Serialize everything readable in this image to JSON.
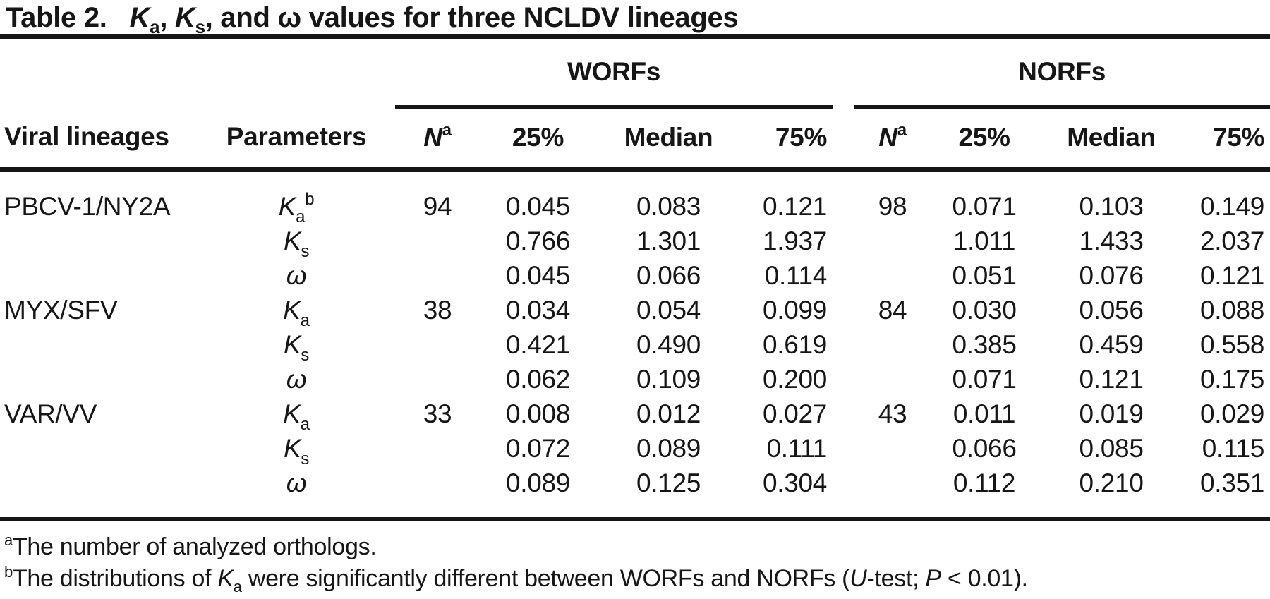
{
  "title": {
    "label": "Table 2.",
    "k1": "K",
    "k1_sub": "a",
    "sep1": ", ",
    "k2": "K",
    "k2_sub": "s",
    "sep2": ", ",
    "rest": "and ω values for three NCLDV lineages"
  },
  "header": {
    "group_worfs": "WORFs",
    "group_norfs": "NORFs",
    "col_lineage": "Viral lineages",
    "col_parameters": "Parameters",
    "col_n_base": "N",
    "col_n_sup": "a",
    "col_p25": "25%",
    "col_median": "Median",
    "col_p75": "75%"
  },
  "table": {
    "rows": [
      {
        "lineage": "PBCV-1/NY2A",
        "param": {
          "base": "K",
          "sub": "a",
          "sup": "b"
        },
        "w": {
          "n": "94",
          "p25": "0.045",
          "med": "0.083",
          "p75": "0.121"
        },
        "nf": {
          "n": "98",
          "p25": "0.071",
          "med": "0.103",
          "p75": "0.149"
        }
      },
      {
        "lineage": "",
        "param": {
          "base": "K",
          "sub": "s",
          "sup": ""
        },
        "w": {
          "n": "",
          "p25": "0.766",
          "med": "1.301",
          "p75": "1.937"
        },
        "nf": {
          "n": "",
          "p25": "1.011",
          "med": "1.433",
          "p75": "2.037"
        }
      },
      {
        "lineage": "",
        "param": {
          "base": "ω",
          "sub": "",
          "sup": ""
        },
        "w": {
          "n": "",
          "p25": "0.045",
          "med": "0.066",
          "p75": "0.114"
        },
        "nf": {
          "n": "",
          "p25": "0.051",
          "med": "0.076",
          "p75": "0.121"
        }
      },
      {
        "lineage": "MYX/SFV",
        "param": {
          "base": "K",
          "sub": "a",
          "sup": ""
        },
        "w": {
          "n": "38",
          "p25": "0.034",
          "med": "0.054",
          "p75": "0.099"
        },
        "nf": {
          "n": "84",
          "p25": "0.030",
          "med": "0.056",
          "p75": "0.088"
        }
      },
      {
        "lineage": "",
        "param": {
          "base": "K",
          "sub": "s",
          "sup": ""
        },
        "w": {
          "n": "",
          "p25": "0.421",
          "med": "0.490",
          "p75": "0.619"
        },
        "nf": {
          "n": "",
          "p25": "0.385",
          "med": "0.459",
          "p75": "0.558"
        }
      },
      {
        "lineage": "",
        "param": {
          "base": "ω",
          "sub": "",
          "sup": ""
        },
        "w": {
          "n": "",
          "p25": "0.062",
          "med": "0.109",
          "p75": "0.200"
        },
        "nf": {
          "n": "",
          "p25": "0.071",
          "med": "0.121",
          "p75": "0.175"
        }
      },
      {
        "lineage": "VAR/VV",
        "param": {
          "base": "K",
          "sub": "a",
          "sup": ""
        },
        "w": {
          "n": "33",
          "p25": "0.008",
          "med": "0.012",
          "p75": "0.027"
        },
        "nf": {
          "n": "43",
          "p25": "0.011",
          "med": "0.019",
          "p75": "0.029"
        }
      },
      {
        "lineage": "",
        "param": {
          "base": "K",
          "sub": "s",
          "sup": ""
        },
        "w": {
          "n": "",
          "p25": "0.072",
          "med": "0.089",
          "p75": "0.111"
        },
        "nf": {
          "n": "",
          "p25": "0.066",
          "med": "0.085",
          "p75": "0.115"
        }
      },
      {
        "lineage": "",
        "param": {
          "base": "ω",
          "sub": "",
          "sup": ""
        },
        "w": {
          "n": "",
          "p25": "0.089",
          "med": "0.125",
          "p75": "0.304"
        },
        "nf": {
          "n": "",
          "p25": "0.112",
          "med": "0.210",
          "p75": "0.351"
        }
      }
    ]
  },
  "footnotes": {
    "a_sup": "a",
    "a_text": "The number of analyzed orthologs.",
    "b_sup": "b",
    "b_t1": "The distributions of ",
    "b_k": "K",
    "b_k_sub": "a",
    "b_t2": " were significantly different between WORFs and NORFs (",
    "b_u": "U",
    "b_t3": "-test; ",
    "b_p": "P",
    "b_t4": " < 0.01)."
  },
  "colors": {
    "text": "#161616",
    "background": "#ffffff",
    "rule": "#161616"
  }
}
